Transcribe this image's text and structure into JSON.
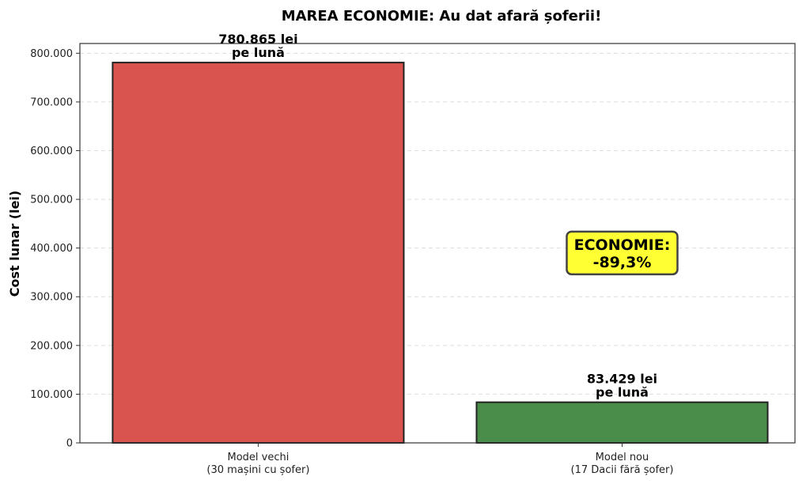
{
  "chart_data": {
    "type": "bar",
    "title": "MAREA ECONOMIE: Au dat afară șoferii!",
    "xlabel": "",
    "ylabel": "Cost lunar (lei)",
    "ylim": [
      0,
      820000
    ],
    "grid": "y-dashed",
    "categories": [
      [
        "Model vechi",
        "(30 mașini cu șofer)"
      ],
      [
        "Model nou",
        "(17 Dacii fără șofer)"
      ]
    ],
    "values": [
      780865,
      83429
    ],
    "colors": [
      "#d9534f",
      "#4a8c4a"
    ],
    "data_labels": [
      [
        "780.865 lei",
        "pe lună"
      ],
      [
        "83.429 lei",
        "pe lună"
      ]
    ],
    "yticks": [
      0,
      100000,
      200000,
      300000,
      400000,
      500000,
      600000,
      700000,
      800000
    ],
    "ytick_labels": [
      "0",
      "100.000",
      "200.000",
      "300.000",
      "400.000",
      "500.000",
      "600.000",
      "700.000",
      "800.000"
    ],
    "annotation": {
      "lines": [
        "ECONOMIE:",
        "-89,3%"
      ],
      "x": 1,
      "y": 390000,
      "background": "#ffff33"
    }
  }
}
